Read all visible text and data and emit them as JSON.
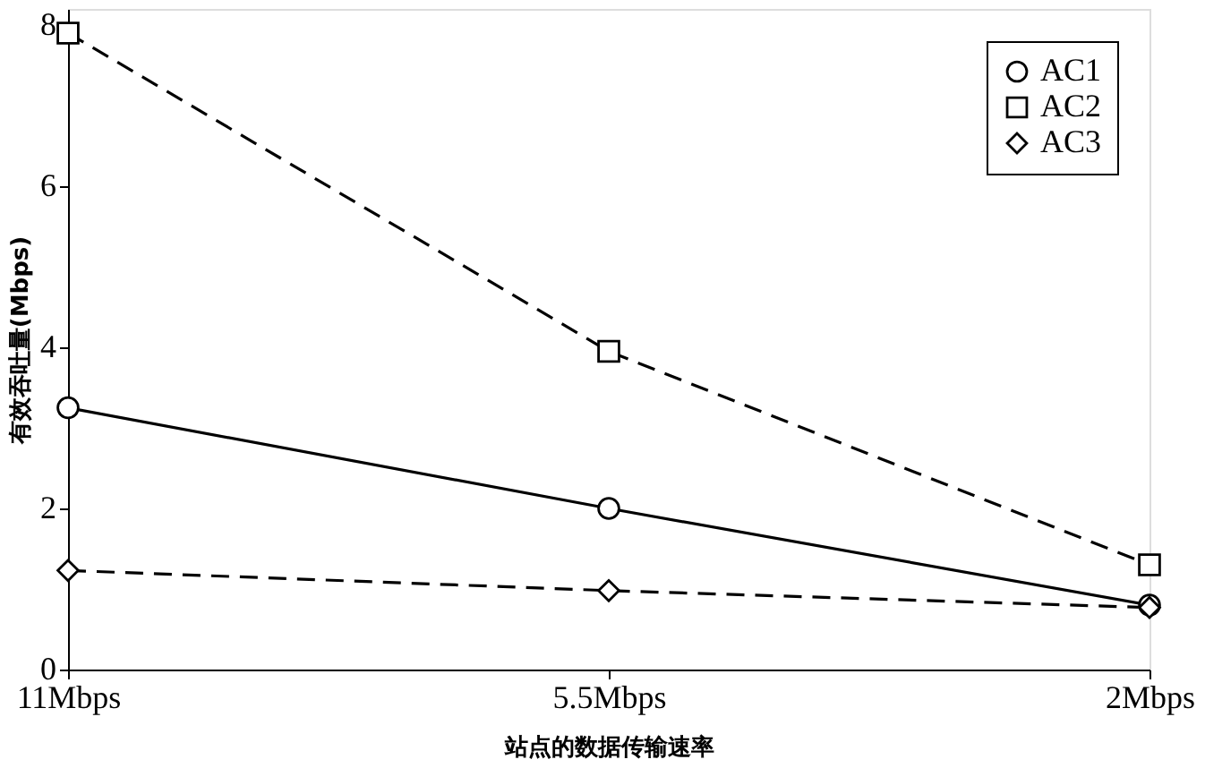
{
  "chart_data": {
    "type": "line",
    "xlabel": "站点的数据传输速率",
    "ylabel": "有效吞吐量(Mbps)",
    "categories": [
      "11Mbps",
      "5.5Mbps",
      "2Mbps"
    ],
    "series": [
      {
        "name": "AC1",
        "color": "#000000",
        "marker": "circle",
        "line_style": "solid",
        "values": [
          3.25,
          2.0,
          0.8
        ]
      },
      {
        "name": "AC2",
        "color": "#000000",
        "marker": "square",
        "line_style": "dashed",
        "values": [
          7.9,
          3.95,
          1.3
        ]
      },
      {
        "name": "AC3",
        "color": "#000000",
        "marker": "diamond",
        "line_style": "dashed",
        "values": [
          1.23,
          0.98,
          0.77
        ]
      }
    ],
    "ylim": [
      0,
      8.2
    ],
    "yticks": [
      0,
      2,
      4,
      6,
      8
    ],
    "grid": false,
    "legend": "top right"
  }
}
